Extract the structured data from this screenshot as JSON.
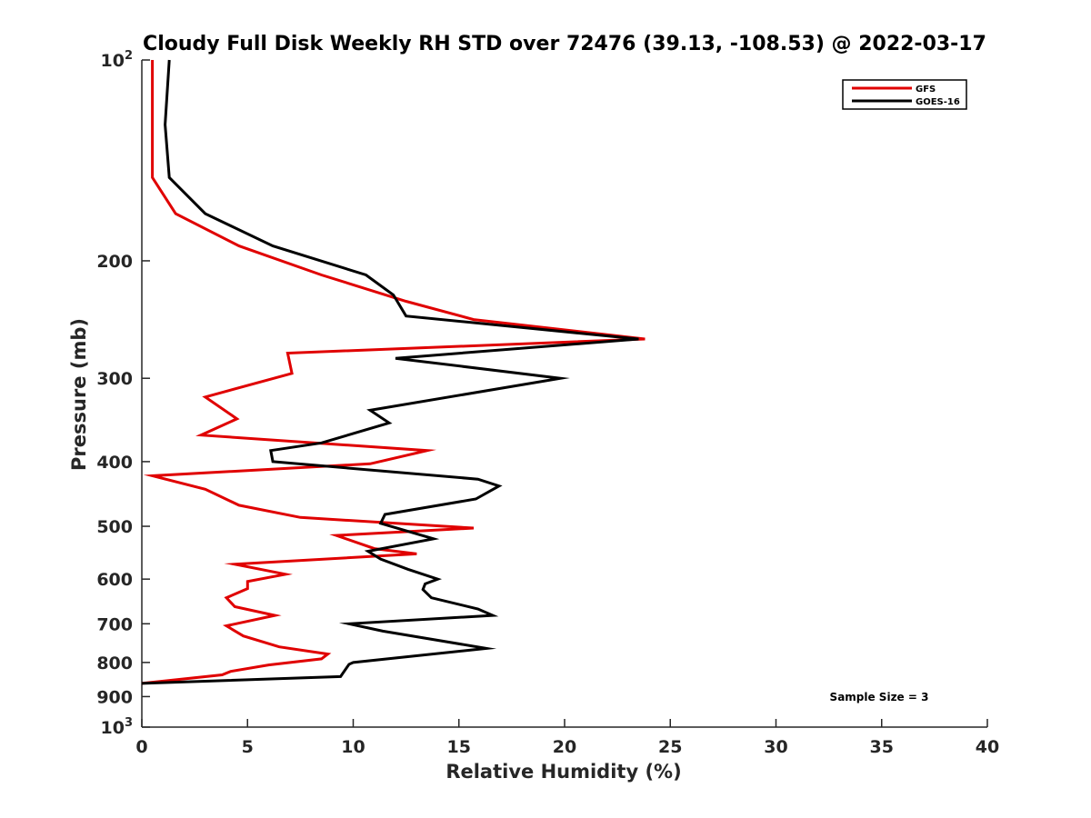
{
  "chart_data": {
    "type": "line",
    "title": "Cloudy Full Disk Weekly RH STD over 72476 (39.13, -108.53) @ 2022-03-17",
    "xlabel": "Relative Humidity (%)",
    "ylabel": "Pressure (mb)",
    "xlim": [
      0,
      40
    ],
    "ylim": [
      100,
      1000
    ],
    "y_scale": "log",
    "y_reversed": true,
    "grid": false,
    "legend_position": "top-right",
    "note": "Sample Size = 3",
    "x_ticks": [
      0,
      5,
      10,
      15,
      20,
      25,
      30,
      35,
      40
    ],
    "y_ticks": [
      {
        "value": 100,
        "base": "10",
        "exp": "2"
      },
      {
        "value": 200,
        "label": "200"
      },
      {
        "value": 300,
        "label": "300"
      },
      {
        "value": 400,
        "label": "400"
      },
      {
        "value": 500,
        "label": "500"
      },
      {
        "value": 600,
        "label": "600"
      },
      {
        "value": 700,
        "label": "700"
      },
      {
        "value": 800,
        "label": "800"
      },
      {
        "value": 900,
        "label": "900"
      },
      {
        "value": 1000,
        "base": "10",
        "exp": "3"
      }
    ],
    "series": [
      {
        "name": "GFS",
        "color": "#e00000",
        "points": [
          [
            0.5,
            100
          ],
          [
            0.5,
            125
          ],
          [
            0.5,
            150
          ],
          [
            1.6,
            170
          ],
          [
            4.6,
            190
          ],
          [
            8.5,
            210
          ],
          [
            12.5,
            230
          ],
          [
            15.7,
            245
          ],
          [
            23.8,
            262
          ],
          [
            6.9,
            275
          ],
          [
            7.1,
            295
          ],
          [
            3.0,
            320
          ],
          [
            4.5,
            345
          ],
          [
            2.8,
            365
          ],
          [
            13.5,
            385
          ],
          [
            10.8,
            403
          ],
          [
            0.5,
            420
          ],
          [
            3.0,
            440
          ],
          [
            4.6,
            465
          ],
          [
            7.5,
            485
          ],
          [
            15.7,
            503
          ],
          [
            9.2,
            516
          ],
          [
            11.0,
            540
          ],
          [
            13.0,
            550
          ],
          [
            4.4,
            570
          ],
          [
            6.8,
            590
          ],
          [
            5.0,
            605
          ],
          [
            5.0,
            620
          ],
          [
            4.0,
            640
          ],
          [
            4.4,
            660
          ],
          [
            6.3,
            680
          ],
          [
            4.0,
            705
          ],
          [
            4.8,
            730
          ],
          [
            6.5,
            758
          ],
          [
            8.8,
            777
          ],
          [
            8.5,
            790
          ],
          [
            6.0,
            807
          ],
          [
            4.2,
            825
          ],
          [
            3.8,
            835
          ],
          [
            0.0,
            860
          ]
        ]
      },
      {
        "name": "GOES-16",
        "color": "#000000",
        "points": [
          [
            1.3,
            100
          ],
          [
            1.1,
            125
          ],
          [
            1.3,
            150
          ],
          [
            3.0,
            170
          ],
          [
            6.2,
            190
          ],
          [
            10.6,
            210
          ],
          [
            11.9,
            225
          ],
          [
            12.5,
            242
          ],
          [
            23.5,
            262
          ],
          [
            12.0,
            280
          ],
          [
            19.8,
            300
          ],
          [
            10.8,
            335
          ],
          [
            11.7,
            350
          ],
          [
            8.5,
            375
          ],
          [
            6.1,
            385
          ],
          [
            6.2,
            400
          ],
          [
            15.9,
            425
          ],
          [
            16.9,
            435
          ],
          [
            15.8,
            455
          ],
          [
            11.5,
            480
          ],
          [
            11.3,
            495
          ],
          [
            13.8,
            522
          ],
          [
            10.7,
            545
          ],
          [
            11.3,
            560
          ],
          [
            12.6,
            580
          ],
          [
            14.0,
            600
          ],
          [
            13.4,
            610
          ],
          [
            13.3,
            622
          ],
          [
            13.7,
            640
          ],
          [
            15.9,
            665
          ],
          [
            16.6,
            680
          ],
          [
            9.8,
            700
          ],
          [
            11.4,
            718
          ],
          [
            16.3,
            762
          ],
          [
            10.0,
            800
          ],
          [
            9.8,
            805
          ],
          [
            9.4,
            840
          ],
          [
            0.0,
            860
          ]
        ]
      }
    ]
  }
}
